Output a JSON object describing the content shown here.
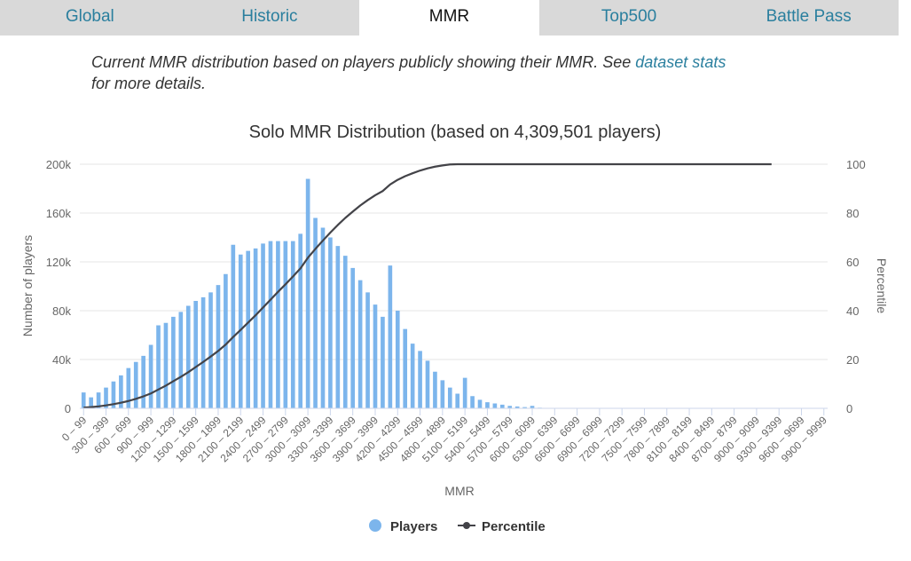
{
  "tabs": [
    {
      "label": "Global",
      "active": false
    },
    {
      "label": "Historic",
      "active": false
    },
    {
      "label": "MMR",
      "active": true
    },
    {
      "label": "Top500",
      "active": false
    },
    {
      "label": "Battle Pass",
      "active": false
    }
  ],
  "description": {
    "text_before": "Current MMR distribution based on players publicly showing their MMR. See ",
    "link_text": "dataset stats",
    "text_after": "for more details."
  },
  "chart_data": {
    "type": "bar",
    "title": "Solo MMR Distribution (based on 4,309,501 players)",
    "xlabel": "MMR",
    "ylabel": "Number of players",
    "y2label": "Percentile",
    "ylim": [
      0,
      200000
    ],
    "y2lim": [
      0,
      100
    ],
    "yticks": [
      "0",
      "40k",
      "80k",
      "120k",
      "160k",
      "200k"
    ],
    "y2ticks": [
      "0",
      "20",
      "40",
      "60",
      "80",
      "100"
    ],
    "grid": true,
    "legend_position": "bottom-center",
    "colors": {
      "players": "#7cb5ec",
      "percentile": "#434348"
    },
    "categories": [
      "0 – 99",
      "100 – 199",
      "200 – 299",
      "300 – 399",
      "400 – 499",
      "500 – 599",
      "600 – 699",
      "700 – 799",
      "800 – 899",
      "900 – 999",
      "1000 – 1099",
      "1100 – 1199",
      "1200 – 1299",
      "1300 – 1399",
      "1400 – 1499",
      "1500 – 1599",
      "1600 – 1699",
      "1700 – 1799",
      "1800 – 1899",
      "1900 – 1999",
      "2000 – 2099",
      "2100 – 2199",
      "2200 – 2299",
      "2300 – 2399",
      "2400 – 2499",
      "2500 – 2599",
      "2600 – 2699",
      "2700 – 2799",
      "2800 – 2899",
      "2900 – 2999",
      "3000 – 3099",
      "3100 – 3199",
      "3200 – 3299",
      "3300 – 3399",
      "3400 – 3499",
      "3500 – 3599",
      "3600 – 3699",
      "3700 – 3799",
      "3800 – 3899",
      "3900 – 3999",
      "4000 – 4099",
      "4100 – 4199",
      "4200 – 4299",
      "4300 – 4399",
      "4400 – 4499",
      "4500 – 4599",
      "4600 – 4699",
      "4700 – 4799",
      "4800 – 4899",
      "4900 – 4999",
      "5000 – 5099",
      "5100 – 5199",
      "5200 – 5299",
      "5300 – 5399",
      "5400 – 5499",
      "5500 – 5599",
      "5600 – 5699",
      "5700 – 5799",
      "5800 – 5899",
      "5900 – 5999",
      "6000 – 6099",
      "6100 – 6199",
      "6200 – 6299",
      "6300 – 6399",
      "6400 – 6499",
      "6500 – 6599",
      "6600 – 6699",
      "6700 – 6799",
      "6800 – 6899",
      "6900 – 6999",
      "7000 – 7099",
      "7100 – 7199",
      "7200 – 7299",
      "7300 – 7399",
      "7400 – 7499",
      "7500 – 7599",
      "7600 – 7699",
      "7700 – 7799",
      "7800 – 7899",
      "7900 – 7999",
      "8000 – 8099",
      "8100 – 8199",
      "8200 – 8299",
      "8300 – 8399",
      "8400 – 8499",
      "8500 – 8599",
      "8600 – 8699",
      "8700 – 8799",
      "8800 – 8899",
      "8900 – 8999",
      "9000 – 9099",
      "9100 – 9199",
      "9200 – 9299",
      "9300 – 9399",
      "9400 – 9499",
      "9500 – 9599",
      "9600 – 9699",
      "9700 – 9799",
      "9800 – 9899",
      "9900 – 9999"
    ],
    "series": [
      {
        "name": "Players",
        "type": "bar",
        "values": [
          13000,
          9000,
          13000,
          17000,
          22000,
          27000,
          33000,
          38000,
          43000,
          52000,
          68000,
          70000,
          75000,
          79000,
          84000,
          88000,
          91000,
          95000,
          101000,
          110000,
          134000,
          126000,
          129000,
          131000,
          135000,
          137000,
          137000,
          137000,
          137000,
          143000,
          188000,
          156000,
          148000,
          140000,
          133000,
          125000,
          115000,
          105000,
          95000,
          85000,
          75000,
          117000,
          80000,
          65000,
          53000,
          47000,
          39000,
          30000,
          23000,
          17000,
          12000,
          25000,
          10000,
          7000,
          5000,
          4000,
          3000,
          2000,
          1500,
          1000,
          2000,
          500,
          300,
          200,
          100,
          100,
          50,
          50,
          50,
          50,
          0,
          0,
          0,
          0,
          0,
          0,
          0,
          0,
          0,
          0,
          0,
          0,
          0,
          0,
          0,
          0,
          0,
          0,
          0,
          0,
          0,
          0,
          0,
          0,
          0,
          0,
          0,
          0,
          0,
          0
        ]
      },
      {
        "name": "Percentile",
        "type": "line",
        "values": [
          0.3,
          0.5,
          0.8,
          1.2,
          1.7,
          2.3,
          3.0,
          3.9,
          4.9,
          6.1,
          7.7,
          9.3,
          11.1,
          12.9,
          14.8,
          16.9,
          19.0,
          21.2,
          23.5,
          26.1,
          29.2,
          32.1,
          35.1,
          38.1,
          41.3,
          44.5,
          47.7,
          50.8,
          54.0,
          57.3,
          61.7,
          65.3,
          68.7,
          72.0,
          75.1,
          78.0,
          80.6,
          83.1,
          85.3,
          87.3,
          89.0,
          91.7,
          93.6,
          95.1,
          96.3,
          97.4,
          98.3,
          99.0,
          99.5,
          99.9,
          100,
          100,
          100,
          100,
          100,
          100,
          100,
          100,
          100,
          100,
          100,
          100,
          100,
          100,
          100,
          100,
          100,
          100,
          100,
          100,
          100,
          100,
          100,
          100,
          100,
          100,
          100,
          100,
          100,
          100,
          100,
          100,
          100,
          100,
          100,
          100,
          100,
          100,
          100,
          100,
          100,
          100,
          100,
          100,
          100,
          100,
          100,
          100,
          100,
          100
        ]
      }
    ]
  }
}
